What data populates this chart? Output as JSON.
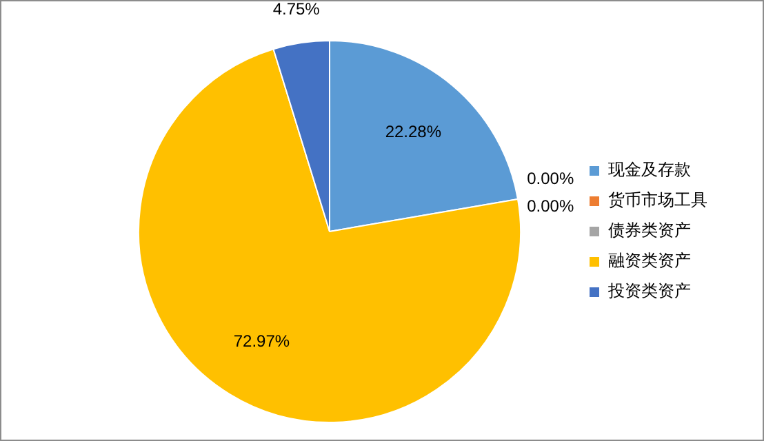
{
  "chart_data": {
    "type": "pie",
    "categories": [
      "现金及存款",
      "货币市场工具",
      "债券类资产",
      "融资类资产",
      "投资类资产"
    ],
    "values": [
      22.28,
      0.0,
      0.0,
      72.97,
      4.75
    ],
    "colors": [
      "#5b9bd5",
      "#ed7d31",
      "#a5a5a5",
      "#ffc000",
      "#4472c4"
    ],
    "value_labels": [
      "22.28%",
      "0.00%",
      "0.00%",
      "72.97%",
      "4.75%"
    ],
    "legend": "right"
  }
}
